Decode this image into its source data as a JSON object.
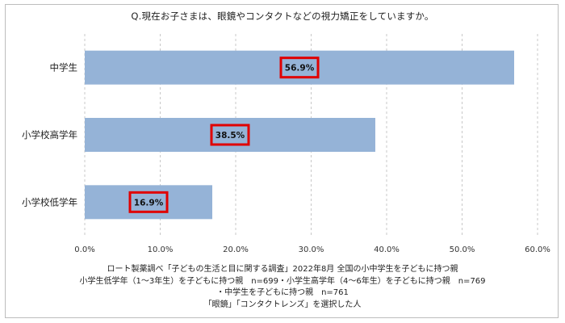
{
  "title": "Q.現在お子さまは、眼鏡やコンタクトなどの視力矯正をしていますか。",
  "chart_data": {
    "type": "bar",
    "orientation": "horizontal",
    "categories": [
      "中学生",
      "小学校高学年",
      "小学校低学年"
    ],
    "values": [
      56.9,
      38.5,
      16.9
    ],
    "data_labels": [
      "56.9%",
      "38.5%",
      "16.9%"
    ],
    "xlim": [
      0,
      60
    ],
    "x_ticks": [
      0,
      10,
      20,
      30,
      40,
      50,
      60
    ],
    "x_tick_labels": [
      "0.0%",
      "10.0%",
      "20.0%",
      "30.0%",
      "40.0%",
      "50.0%",
      "60.0%"
    ],
    "grid": "vertical dashed",
    "bar_color": "#95b3d7",
    "label_box_color": "#e00000"
  },
  "footnotes": [
    "ロート製薬調べ「子どもの生活と目に関する調査」2022年8月 全国の小中学生を子どもに持つ親",
    "小学生低学年（1〜3年生）を子どもに持つ親　n=699・小学生高学年（4〜6年生）を子どもに持つ親　n=769",
    "・中学生を子どもに持つ親　n=761",
    "「眼鏡」「コンタクトレンズ」を選択した人"
  ]
}
